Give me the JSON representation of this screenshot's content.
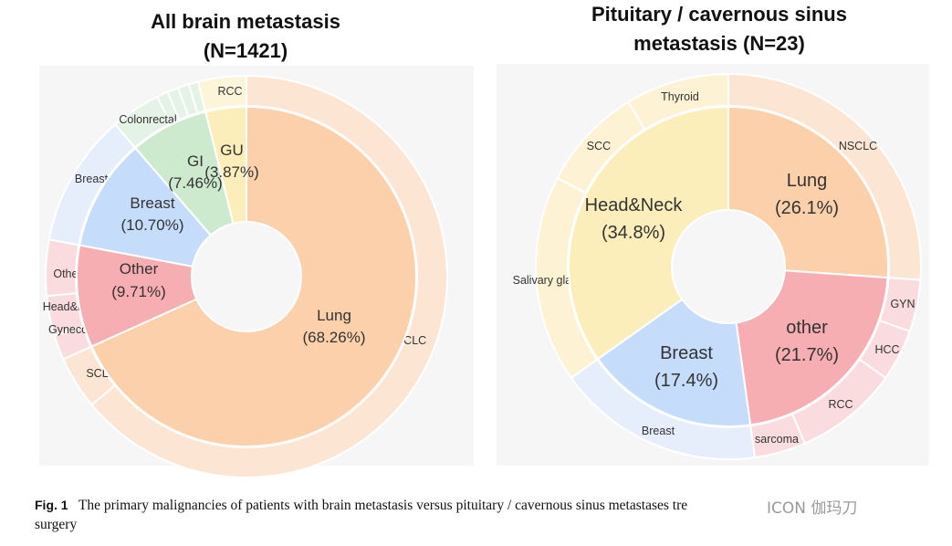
{
  "colors": {
    "lung": "#fbd0aa",
    "lung_outer": "#fde5d3",
    "other": "#f7aeb2",
    "other_outer": "#fbdcde",
    "breast": "#c6dcfb",
    "breast_outer": "#e6eefb",
    "gi": "#cdeacf",
    "gi_outer": "#e5f3e6",
    "gu": "#fbeebb",
    "gu_outer": "#fdf5da",
    "headneck": "#fbeebb",
    "headneck_outer": "#fdf3d4",
    "panel_bg": "#f6f6f6"
  },
  "chart_data": [
    {
      "type": "pie",
      "title_line1": "All brain metastasis",
      "title_line2": "(N=1421)",
      "inner": [
        {
          "name": "Lung",
          "percent_label": "(68.26%)",
          "value": 68.26,
          "color": "lung"
        },
        {
          "name": "Other",
          "percent_label": "(9.71%)",
          "value": 9.71,
          "color": "other"
        },
        {
          "name": "Breast",
          "percent_label": "(10.70%)",
          "value": 10.7,
          "color": "breast"
        },
        {
          "name": "GI",
          "percent_label": "(7.46%)",
          "value": 7.46,
          "color": "gi"
        },
        {
          "name": "GU",
          "percent_label": "(3.87%)",
          "value": 3.87,
          "color": "gu"
        }
      ],
      "outer": [
        {
          "name": "NSCLC",
          "value": 64.0,
          "color": "lung_outer"
        },
        {
          "name": "SCLC",
          "value": 4.26,
          "color": "lung_outer"
        },
        {
          "name": "Gynecology",
          "value": 2.0,
          "color": "other_outer"
        },
        {
          "name": "Head&neck",
          "value": 3.2,
          "color": "other_outer"
        },
        {
          "name": "Other",
          "value": 4.51,
          "color": "other_outer"
        },
        {
          "name": "Breast",
          "value": 10.7,
          "color": "breast_outer"
        },
        {
          "name": "Colonrectal",
          "value": 4.0,
          "color": "gi_outer"
        },
        {
          "name": "",
          "value": 0.9,
          "color": "gi_outer"
        },
        {
          "name": "",
          "value": 0.9,
          "color": "gi_outer"
        },
        {
          "name": "",
          "value": 0.9,
          "color": "gi_outer"
        },
        {
          "name": "",
          "value": 0.76,
          "color": "gi_outer"
        },
        {
          "name": "RCC",
          "value": 3.87,
          "color": "gu_outer"
        }
      ]
    },
    {
      "type": "pie",
      "title_line1": "Pituitary / cavernous sinus",
      "title_line2": "metastasis (N=23)",
      "inner": [
        {
          "name": "Lung",
          "percent_label": "(26.1%)",
          "value": 26.1,
          "color": "lung"
        },
        {
          "name": "other",
          "percent_label": "(21.7%)",
          "value": 21.7,
          "color": "other"
        },
        {
          "name": "Breast",
          "percent_label": "(17.4%)",
          "value": 17.4,
          "color": "breast"
        },
        {
          "name": "Head&Neck",
          "percent_label": "(34.8%)",
          "value": 34.8,
          "color": "headneck"
        }
      ],
      "outer": [
        {
          "name": "NSCLC",
          "value": 26.1,
          "color": "lung_outer"
        },
        {
          "name": "GYN",
          "value": 4.35,
          "color": "other_outer"
        },
        {
          "name": "HCC",
          "value": 4.35,
          "color": "other_outer"
        },
        {
          "name": "RCC",
          "value": 8.7,
          "color": "other_outer"
        },
        {
          "name": "sarcoma",
          "value": 4.3,
          "color": "other_outer"
        },
        {
          "name": "Breast",
          "value": 17.4,
          "color": "breast_outer"
        },
        {
          "name": "Salivary glands",
          "value": 17.4,
          "color": "headneck_outer"
        },
        {
          "name": "SCC",
          "value": 8.7,
          "color": "headneck_outer"
        },
        {
          "name": "Thyroid",
          "value": 8.7,
          "color": "headneck_outer"
        }
      ]
    }
  ],
  "caption": {
    "fig_label": "Fig. 1",
    "text": "The primary malignancies of patients with brain metastasis versus pituitary / cavernous sinus metastases tre",
    "text_line2": "surgery"
  },
  "watermark": "ICON 伽玛刀"
}
